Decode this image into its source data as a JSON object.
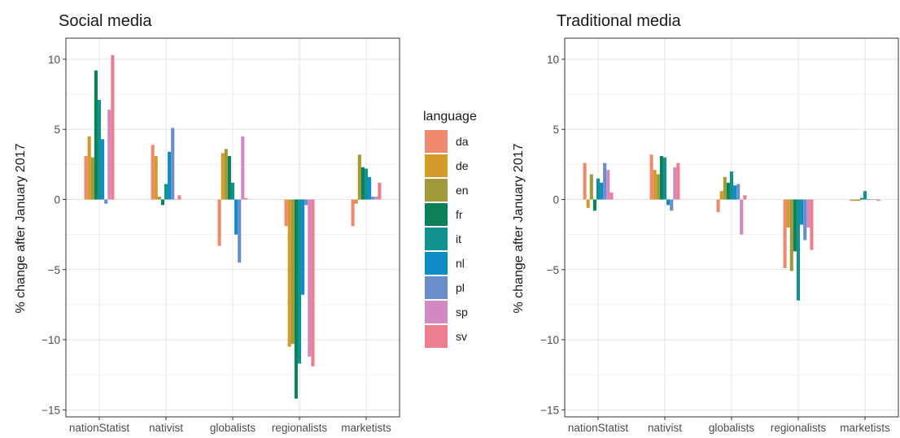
{
  "chart_data": [
    {
      "type": "bar",
      "title": "Social media",
      "ylabel": "% change after January 2017",
      "xlabel": "",
      "categories": [
        "nationStatist",
        "nativist",
        "globalists",
        "regionalists",
        "marketists"
      ],
      "yticks": [
        10,
        5,
        0,
        -5,
        -10,
        -15
      ],
      "ytick_labels": [
        "10",
        "5",
        "0",
        "−5",
        "−10",
        "−15"
      ],
      "ylim": [
        -15.5,
        11.5
      ],
      "grid": true,
      "series": [
        {
          "name": "da",
          "values": [
            3.1,
            3.9,
            -3.3,
            -1.9,
            -1.9
          ]
        },
        {
          "name": "de",
          "values": [
            4.5,
            3.1,
            3.3,
            -10.5,
            -0.3
          ]
        },
        {
          "name": "en",
          "values": [
            3.0,
            0.2,
            3.6,
            -10.3,
            3.2
          ]
        },
        {
          "name": "fr",
          "values": [
            9.2,
            -0.4,
            3.1,
            -14.2,
            2.3
          ]
        },
        {
          "name": "it",
          "values": [
            7.1,
            1.1,
            1.2,
            -11.7,
            2.2
          ]
        },
        {
          "name": "nl",
          "values": [
            4.3,
            3.4,
            -2.5,
            -6.8,
            1.6
          ]
        },
        {
          "name": "pl",
          "values": [
            -0.3,
            5.1,
            -4.5,
            -0.4,
            0.2
          ]
        },
        {
          "name": "sp",
          "values": [
            6.4,
            0.0,
            4.5,
            -11.2,
            0.2
          ]
        },
        {
          "name": "sv",
          "values": [
            10.3,
            0.3,
            0.1,
            -11.9,
            1.2
          ]
        }
      ]
    },
    {
      "type": "bar",
      "title": "Traditional media",
      "ylabel": "% change after January 2017",
      "xlabel": "",
      "categories": [
        "nationStatist",
        "nativist",
        "globalists",
        "regionalists",
        "marketists"
      ],
      "yticks": [
        10,
        5,
        0,
        -5,
        -10,
        -15
      ],
      "ytick_labels": [
        "10",
        "5",
        "0",
        "−5",
        "−10",
        "−15"
      ],
      "ylim": [
        -15.5,
        11.5
      ],
      "grid": true,
      "series": [
        {
          "name": "da",
          "values": [
            2.6,
            3.2,
            -0.9,
            -4.9,
            -0.1
          ]
        },
        {
          "name": "de",
          "values": [
            -0.6,
            2.1,
            0.6,
            -2.0,
            -0.1
          ]
        },
        {
          "name": "en",
          "values": [
            1.8,
            1.8,
            1.6,
            -5.1,
            -0.1
          ]
        },
        {
          "name": "fr",
          "values": [
            -0.8,
            3.1,
            1.2,
            -3.7,
            0.1
          ]
        },
        {
          "name": "it",
          "values": [
            1.5,
            3.0,
            2.0,
            -7.2,
            0.6
          ]
        },
        {
          "name": "nl",
          "values": [
            1.2,
            -0.4,
            1.0,
            -1.8,
            0.0
          ]
        },
        {
          "name": "pl",
          "values": [
            2.6,
            -0.8,
            1.1,
            -2.9,
            0.0
          ]
        },
        {
          "name": "sp",
          "values": [
            2.1,
            2.3,
            -2.5,
            -2.0,
            0.0
          ]
        },
        {
          "name": "sv",
          "values": [
            0.5,
            2.6,
            0.3,
            -3.6,
            -0.1
          ]
        }
      ]
    }
  ],
  "legend": {
    "title": "language",
    "placement": "between-panels",
    "items": [
      {
        "label": "da",
        "color": "#F08A6E"
      },
      {
        "label": "de",
        "color": "#D39A2A"
      },
      {
        "label": "en",
        "color": "#A19A38"
      },
      {
        "label": "fr",
        "color": "#0C8157"
      },
      {
        "label": "it",
        "color": "#11918F"
      },
      {
        "label": "nl",
        "color": "#0F8CC3"
      },
      {
        "label": "pl",
        "color": "#6A8DCB"
      },
      {
        "label": "sp",
        "color": "#D289C0"
      },
      {
        "label": "sv",
        "color": "#EF7D90"
      }
    ]
  }
}
